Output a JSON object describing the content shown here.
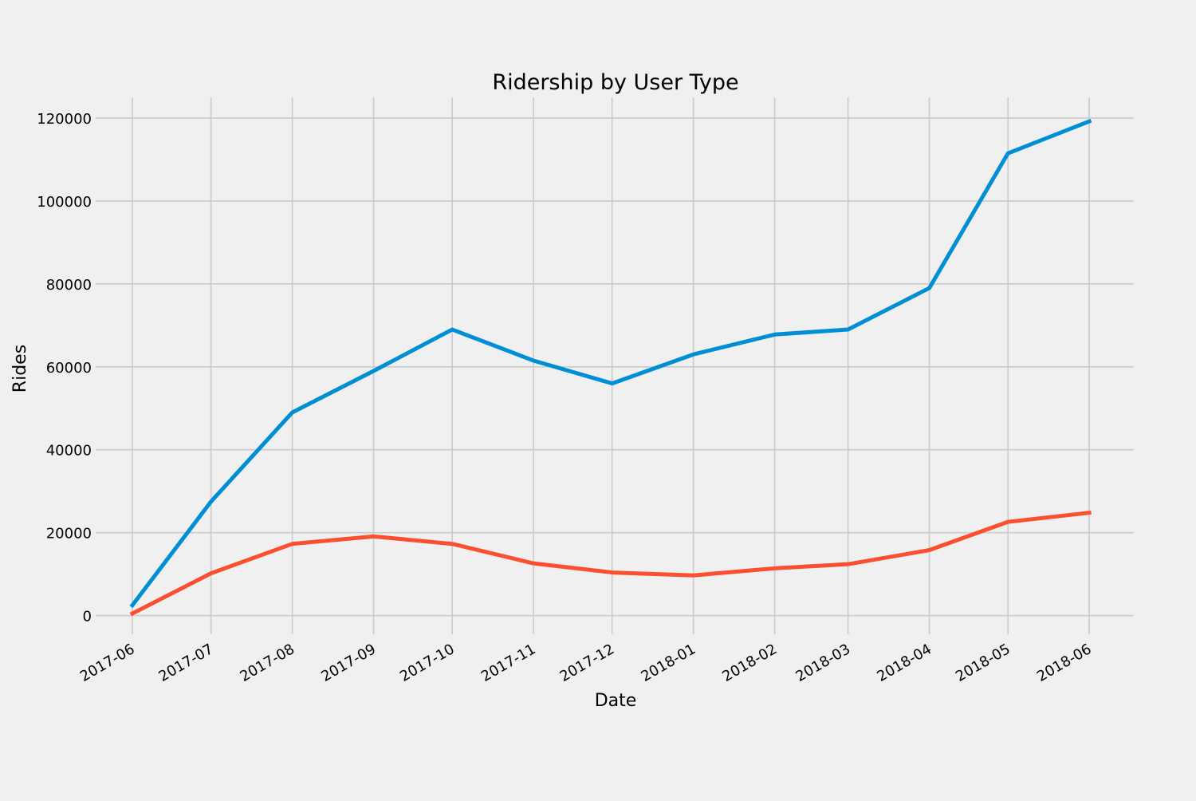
{
  "chart_data": {
    "type": "line",
    "title": "Ridership by User Type",
    "xlabel": "Date",
    "ylabel": "Rides",
    "x": [
      "2017-06",
      "2017-07",
      "2017-08",
      "2017-09",
      "2017-10",
      "2017-11",
      "2017-12",
      "2018-01",
      "2018-02",
      "2018-03",
      "2018-04",
      "2018-05",
      "2018-06"
    ],
    "x_dates": [
      "2017-06-01",
      "2017-07-01",
      "2017-08-01",
      "2017-09-01",
      "2017-10-01",
      "2017-11-01",
      "2017-12-01",
      "2018-01-01",
      "2018-02-01",
      "2018-03-01",
      "2018-04-01",
      "2018-05-01",
      "2018-06-01"
    ],
    "x_range": [
      "2017-05-18",
      "2018-06-18"
    ],
    "ylim": [
      -4500,
      125000
    ],
    "yticks": [
      0,
      20000,
      40000,
      60000,
      80000,
      100000,
      120000
    ],
    "grid": true,
    "series": [
      {
        "color": "#008fd5",
        "values": [
          2500,
          27500,
          49000,
          59000,
          69000,
          61500,
          56000,
          63000,
          67800,
          69000,
          79000,
          111500,
          119200
        ]
      },
      {
        "color": "#fc4f30",
        "values": [
          500,
          10200,
          17300,
          19100,
          17300,
          12600,
          10400,
          9700,
          11400,
          12400,
          15800,
          22600,
          24800
        ]
      }
    ]
  }
}
